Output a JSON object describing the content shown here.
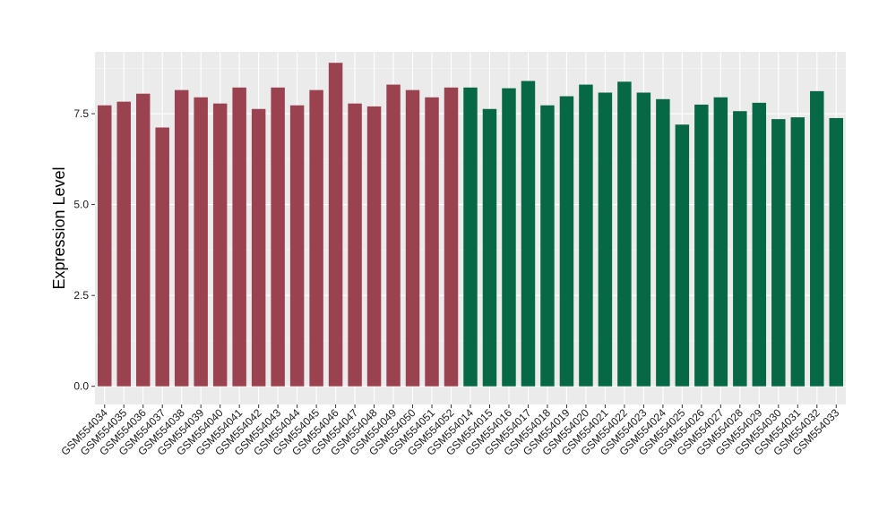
{
  "chart_data": {
    "type": "bar",
    "title": "",
    "xlabel": "",
    "ylabel": "Expression Level",
    "ylim": [
      -0.5,
      9.2
    ],
    "yticks": [
      0.0,
      2.5,
      5.0,
      7.5
    ],
    "ytick_labels": [
      "0.0",
      "2.5",
      "5.0",
      "7.5"
    ],
    "grid": true,
    "legend": "none",
    "colors": {
      "panel": "#ebebeb",
      "grid_major": "#ffffff",
      "grid_minor": "#f5f5f5",
      "group1": "#9b4251",
      "group2": "#066845"
    },
    "categories": [
      "GSM554034",
      "GSM554035",
      "GSM554036",
      "GSM554037",
      "GSM554038",
      "GSM554039",
      "GSM554040",
      "GSM554041",
      "GSM554042",
      "GSM554043",
      "GSM554044",
      "GSM554045",
      "GSM554046",
      "GSM554047",
      "GSM554048",
      "GSM554049",
      "GSM554050",
      "GSM554051",
      "GSM554052",
      "GSM554014",
      "GSM554015",
      "GSM554016",
      "GSM554017",
      "GSM554018",
      "GSM554019",
      "GSM554020",
      "GSM554021",
      "GSM554022",
      "GSM554023",
      "GSM554024",
      "GSM554025",
      "GSM554026",
      "GSM554027",
      "GSM554028",
      "GSM554029",
      "GSM554030",
      "GSM554031",
      "GSM554032",
      "GSM554033"
    ],
    "values": [
      7.73,
      7.83,
      8.05,
      7.12,
      8.15,
      7.95,
      7.78,
      8.22,
      7.63,
      8.22,
      7.73,
      8.15,
      8.9,
      7.78,
      7.7,
      8.3,
      8.15,
      7.95,
      8.22,
      8.22,
      7.63,
      8.2,
      8.4,
      7.73,
      7.98,
      8.3,
      8.08,
      8.38,
      8.08,
      7.9,
      7.2,
      7.75,
      7.95,
      7.57,
      7.8,
      7.35,
      7.4,
      8.12,
      7.38
    ],
    "groups": [
      1,
      1,
      1,
      1,
      1,
      1,
      1,
      1,
      1,
      1,
      1,
      1,
      1,
      1,
      1,
      1,
      1,
      1,
      1,
      2,
      2,
      2,
      2,
      2,
      2,
      2,
      2,
      2,
      2,
      2,
      2,
      2,
      2,
      2,
      2,
      2,
      2,
      2,
      2
    ]
  }
}
